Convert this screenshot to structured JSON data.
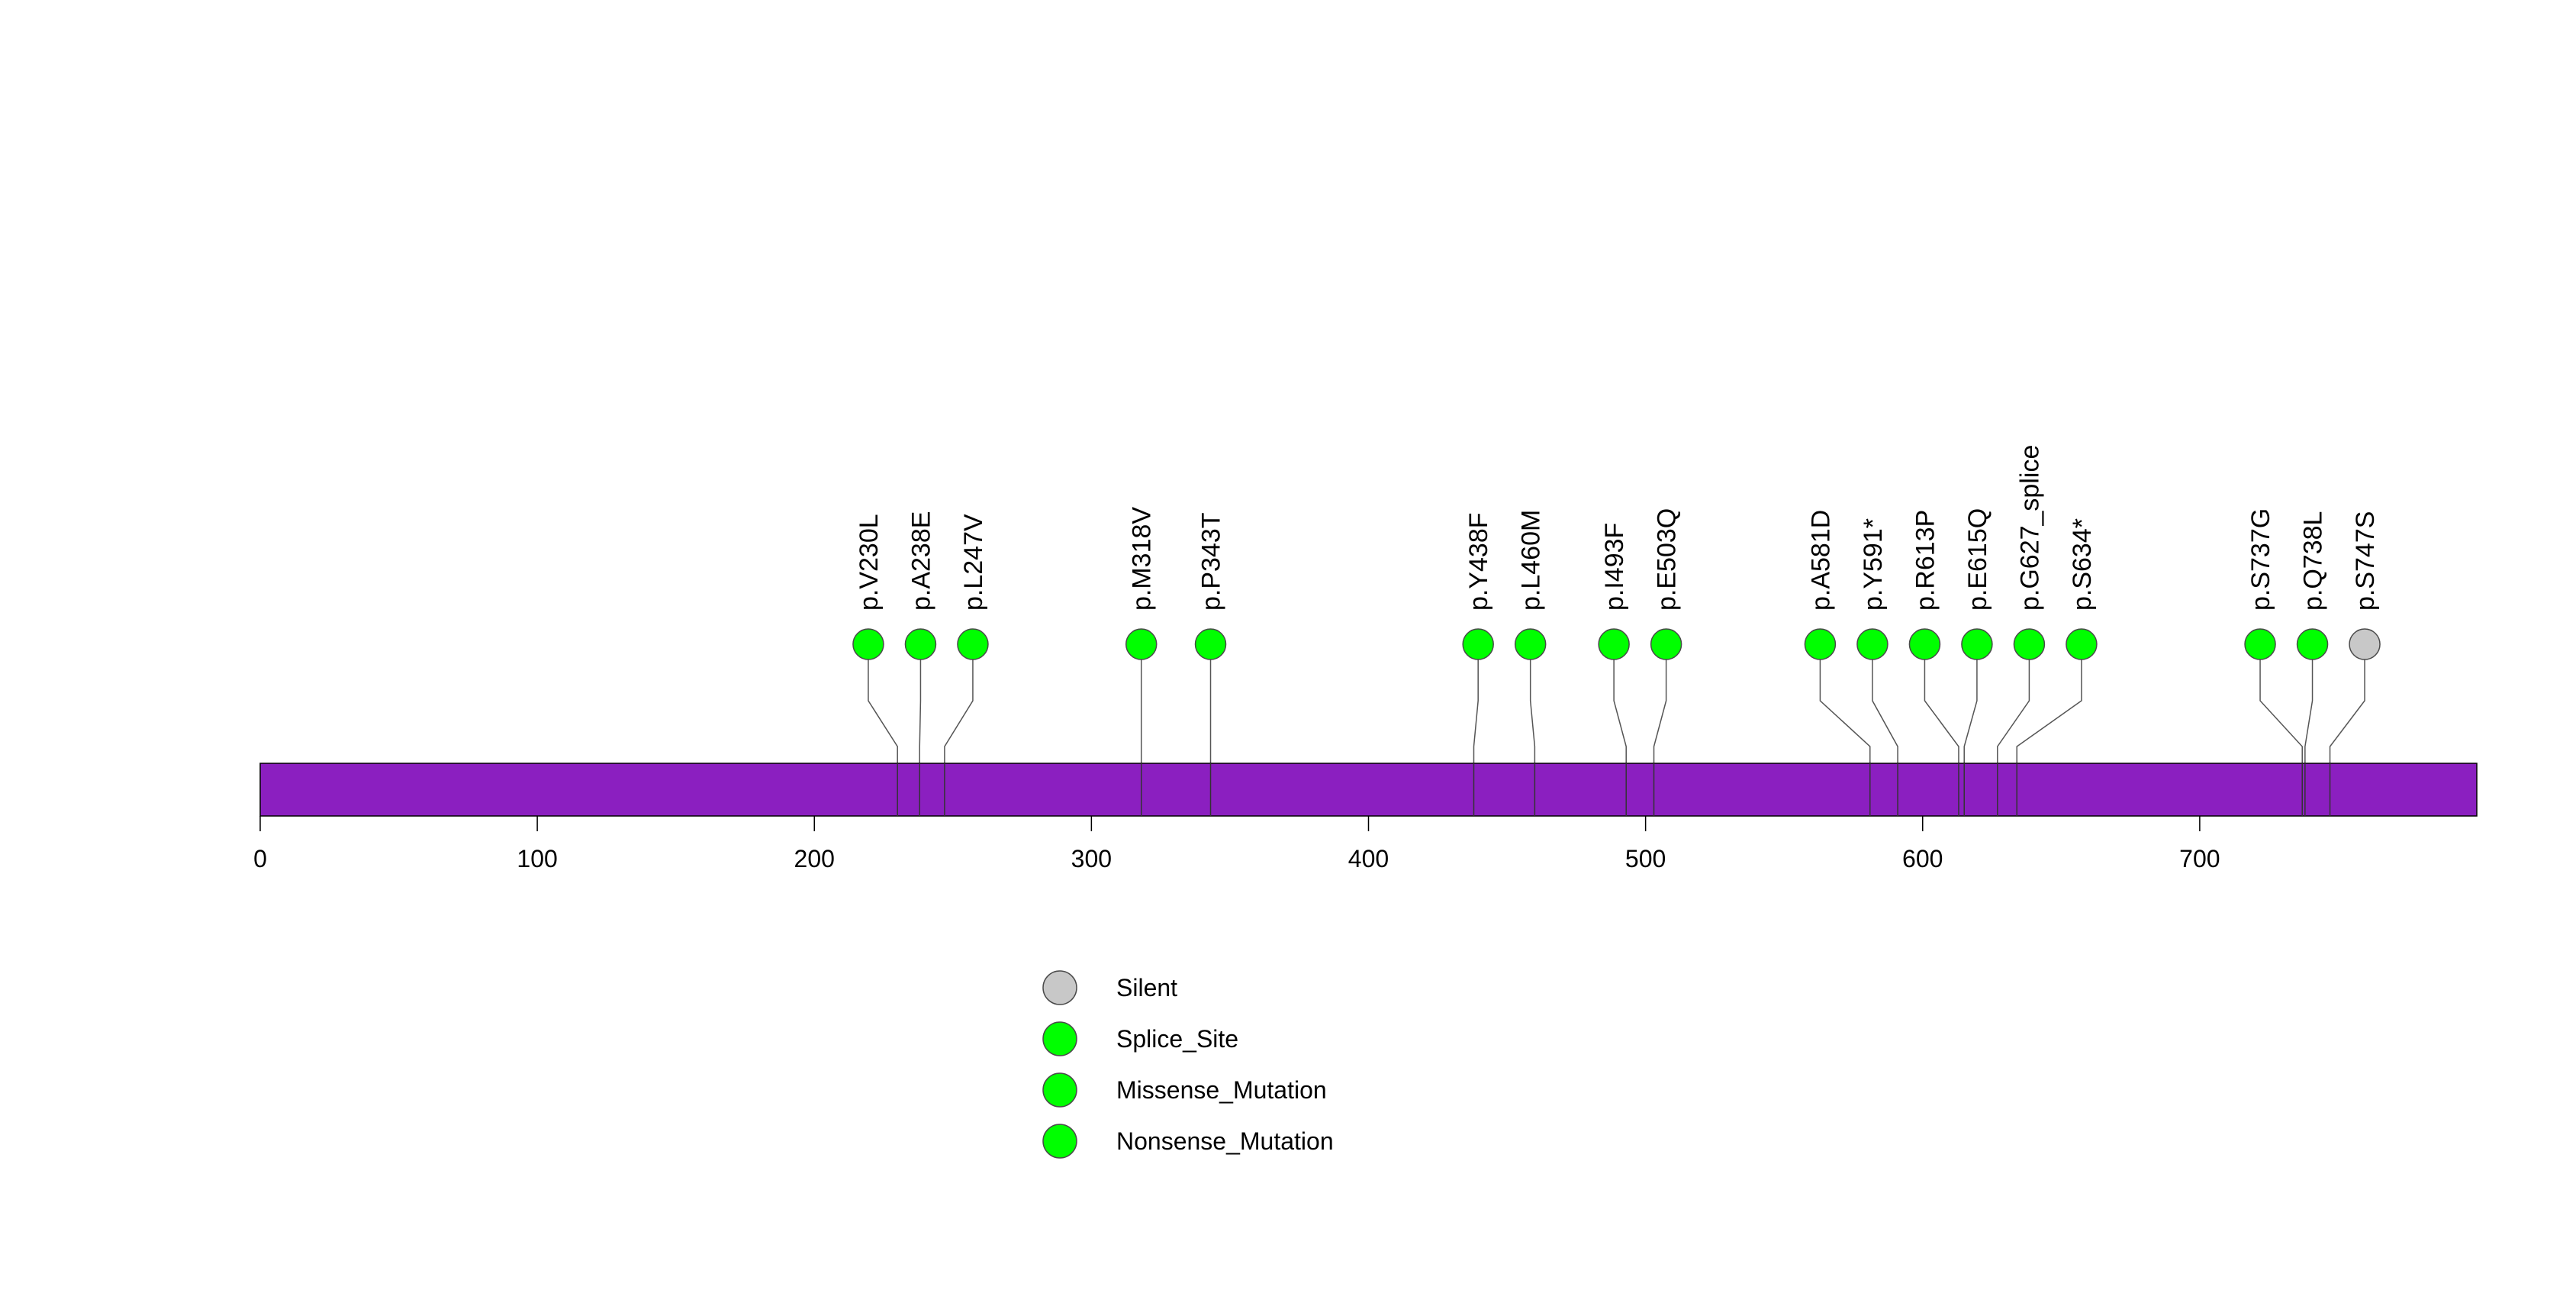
{
  "chart_data": {
    "type": "lollipop",
    "title": "",
    "xlabel": "",
    "ylabel": "",
    "xlim": [
      0,
      800
    ],
    "protein_length": 800,
    "x_ticks": [
      0,
      100,
      200,
      300,
      400,
      500,
      600,
      700
    ],
    "x_tick_labels": [
      "0",
      "100",
      "200",
      "300",
      "400",
      "500",
      "600",
      "700"
    ],
    "protein_bar_color": "#8b1fc0",
    "categories": [
      {
        "key": "silent",
        "name": "Silent",
        "color": "#c8c8c8"
      },
      {
        "key": "splice",
        "name": "Splice_Site",
        "color": "#00ff00"
      },
      {
        "key": "missense",
        "name": "Missense_Mutation",
        "color": "#00ff00"
      },
      {
        "key": "nonsense",
        "name": "Nonsense_Mutation",
        "color": "#00ff00"
      }
    ],
    "mutations": [
      {
        "label": "p.V230L",
        "position": 230,
        "category": "missense"
      },
      {
        "label": "p.A238E",
        "position": 238,
        "category": "missense"
      },
      {
        "label": "p.L247V",
        "position": 247,
        "category": "missense"
      },
      {
        "label": "p.M318V",
        "position": 318,
        "category": "missense"
      },
      {
        "label": "p.P343T",
        "position": 343,
        "category": "missense"
      },
      {
        "label": "p.Y438F",
        "position": 438,
        "category": "missense"
      },
      {
        "label": "p.L460M",
        "position": 460,
        "category": "missense"
      },
      {
        "label": "p.I493F",
        "position": 493,
        "category": "missense"
      },
      {
        "label": "p.E503Q",
        "position": 503,
        "category": "missense"
      },
      {
        "label": "p.A581D",
        "position": 581,
        "category": "missense"
      },
      {
        "label": "p.Y591*",
        "position": 591,
        "category": "nonsense"
      },
      {
        "label": "p.R613P",
        "position": 613,
        "category": "missense"
      },
      {
        "label": "p.E615Q",
        "position": 615,
        "category": "missense"
      },
      {
        "label": "p.G627_splice",
        "position": 627,
        "category": "splice"
      },
      {
        "label": "p.S634*",
        "position": 634,
        "category": "nonsense"
      },
      {
        "label": "p.S737G",
        "position": 737,
        "category": "missense"
      },
      {
        "label": "p.Q738L",
        "position": 738,
        "category": "missense"
      },
      {
        "label": "p.S747S",
        "position": 747,
        "category": "silent"
      }
    ]
  }
}
